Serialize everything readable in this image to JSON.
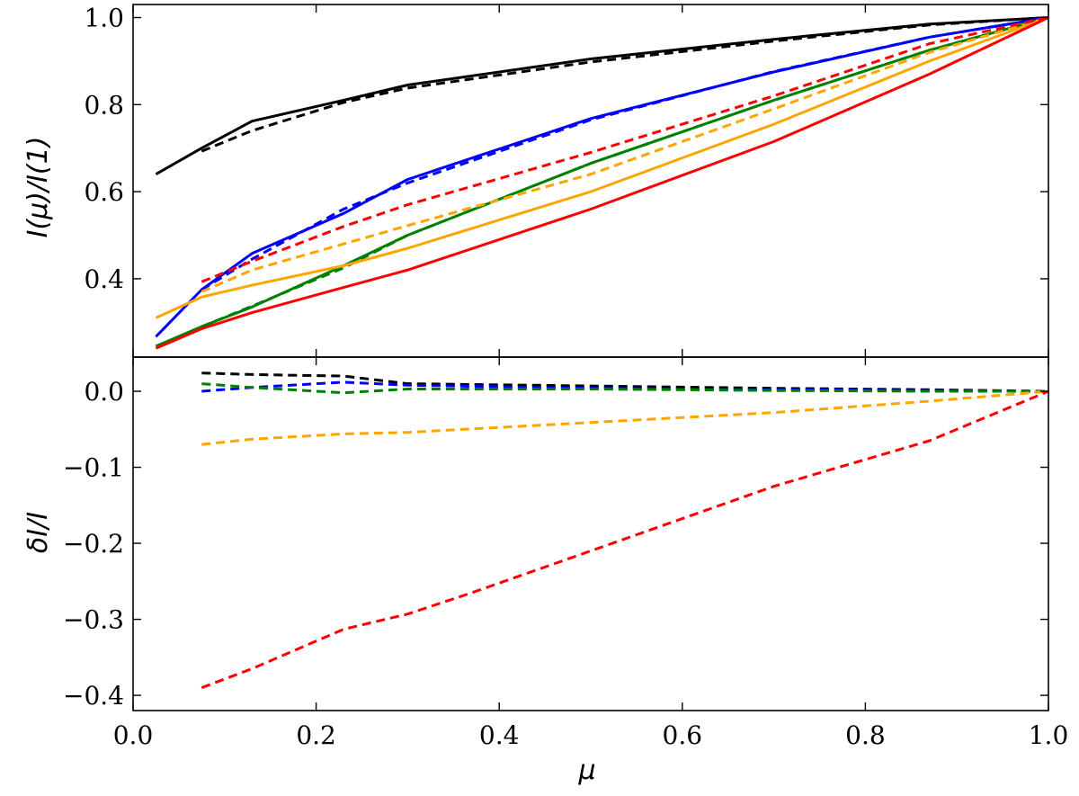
{
  "chart_data": [
    {
      "type": "line",
      "panel": "top",
      "ylabel": "I(μ)/I(1)",
      "xlim": [
        0.0,
        1.0
      ],
      "ylim": [
        0.22,
        1.03
      ],
      "yticks": [
        "0.4",
        "0.6",
        "0.8",
        "1.0"
      ],
      "ytick_values": [
        0.4,
        0.6,
        0.8,
        1.0
      ],
      "series": [
        {
          "color": "#000000",
          "style": "solid",
          "x": [
            0.025,
            0.075,
            0.13,
            0.23,
            0.3,
            0.5,
            0.7,
            0.87,
            1.0
          ],
          "y": [
            0.64,
            0.7,
            0.762,
            0.81,
            0.845,
            0.905,
            0.95,
            0.985,
            1.0
          ]
        },
        {
          "color": "#000000",
          "style": "dashed",
          "x": [
            0.075,
            0.13,
            0.23,
            0.3,
            0.5,
            0.7,
            0.87,
            1.0
          ],
          "y": [
            0.693,
            0.74,
            0.805,
            0.838,
            0.898,
            0.946,
            0.983,
            1.0
          ]
        },
        {
          "color": "#0000ff",
          "style": "solid",
          "x": [
            0.025,
            0.075,
            0.13,
            0.23,
            0.3,
            0.5,
            0.7,
            0.87,
            1.0
          ],
          "y": [
            0.267,
            0.375,
            0.458,
            0.55,
            0.628,
            0.768,
            0.875,
            0.955,
            1.0
          ]
        },
        {
          "color": "#0000ff",
          "style": "dashed",
          "x": [
            0.075,
            0.13,
            0.23,
            0.3,
            0.5,
            0.7,
            0.87,
            1.0
          ],
          "y": [
            0.375,
            0.445,
            0.56,
            0.62,
            0.765,
            0.876,
            0.955,
            1.0
          ]
        },
        {
          "color": "#008000",
          "style": "solid",
          "x": [
            0.025,
            0.075,
            0.13,
            0.23,
            0.3,
            0.5,
            0.7,
            0.87,
            1.0
          ],
          "y": [
            0.245,
            0.29,
            0.335,
            0.43,
            0.5,
            0.665,
            0.81,
            0.925,
            1.0
          ]
        },
        {
          "color": "#008000",
          "style": "dashed",
          "x": [
            0.075,
            0.13,
            0.23,
            0.3,
            0.5,
            0.7,
            0.87,
            1.0
          ],
          "y": [
            0.29,
            0.337,
            0.425,
            0.5,
            0.665,
            0.81,
            0.925,
            1.0
          ]
        },
        {
          "color": "#ffa500",
          "style": "solid",
          "x": [
            0.025,
            0.075,
            0.13,
            0.23,
            0.3,
            0.5,
            0.7,
            0.87,
            1.0
          ],
          "y": [
            0.31,
            0.358,
            0.385,
            0.43,
            0.47,
            0.6,
            0.755,
            0.9,
            1.0
          ]
        },
        {
          "color": "#ffa500",
          "style": "dashed",
          "x": [
            0.075,
            0.13,
            0.23,
            0.3,
            0.5,
            0.7,
            0.87,
            1.0
          ],
          "y": [
            0.37,
            0.42,
            0.48,
            0.522,
            0.64,
            0.79,
            0.92,
            1.0
          ]
        },
        {
          "color": "#ff0000",
          "style": "solid",
          "x": [
            0.025,
            0.075,
            0.13,
            0.23,
            0.3,
            0.5,
            0.7,
            0.87,
            1.0
          ],
          "y": [
            0.24,
            0.285,
            0.322,
            0.38,
            0.42,
            0.56,
            0.715,
            0.87,
            1.0
          ]
        },
        {
          "color": "#ff0000",
          "style": "dashed",
          "x": [
            0.075,
            0.13,
            0.23,
            0.3,
            0.5,
            0.7,
            0.87,
            1.0
          ],
          "y": [
            0.393,
            0.44,
            0.52,
            0.57,
            0.69,
            0.82,
            0.94,
            1.0
          ]
        }
      ]
    },
    {
      "type": "line",
      "panel": "bottom",
      "xlabel": "μ",
      "ylabel": "δI/I",
      "xlim": [
        0.0,
        1.0
      ],
      "ylim": [
        -0.42,
        0.045
      ],
      "xticks": [
        "0.0",
        "0.2",
        "0.4",
        "0.6",
        "0.8",
        "1.0"
      ],
      "xtick_values": [
        0.0,
        0.2,
        0.4,
        0.6,
        0.8,
        1.0
      ],
      "yticks": [
        "−0.4",
        "−0.3",
        "−0.2",
        "−0.1",
        "0.0"
      ],
      "ytick_values": [
        -0.4,
        -0.3,
        -0.2,
        -0.1,
        0.0
      ],
      "series": [
        {
          "color": "#000000",
          "style": "dashed",
          "x": [
            0.075,
            0.13,
            0.23,
            0.3,
            0.5,
            0.7,
            0.87,
            1.0
          ],
          "y": [
            0.024,
            0.022,
            0.02,
            0.01,
            0.007,
            0.004,
            0.002,
            0.0
          ]
        },
        {
          "color": "#0000ff",
          "style": "dashed",
          "x": [
            0.075,
            0.13,
            0.23,
            0.3,
            0.5,
            0.7,
            0.87,
            1.0
          ],
          "y": [
            0.0,
            0.005,
            0.012,
            0.008,
            0.004,
            0.002,
            0.001,
            0.0
          ]
        },
        {
          "color": "#008000",
          "style": "dashed",
          "x": [
            0.075,
            0.13,
            0.23,
            0.3,
            0.5,
            0.7,
            0.87,
            1.0
          ],
          "y": [
            0.01,
            0.005,
            -0.002,
            0.003,
            0.003,
            0.001,
            0.0,
            0.0
          ]
        },
        {
          "color": "#ffa500",
          "style": "dashed",
          "x": [
            0.075,
            0.13,
            0.23,
            0.3,
            0.5,
            0.7,
            0.87,
            1.0
          ],
          "y": [
            -0.07,
            -0.063,
            -0.056,
            -0.054,
            -0.041,
            -0.028,
            -0.013,
            0.0
          ]
        },
        {
          "color": "#ff0000",
          "style": "dashed",
          "x": [
            0.075,
            0.13,
            0.23,
            0.3,
            0.37,
            0.5,
            0.7,
            0.87,
            1.0
          ],
          "y": [
            -0.39,
            -0.365,
            -0.313,
            -0.293,
            -0.265,
            -0.21,
            -0.125,
            -0.065,
            0.0
          ]
        }
      ]
    }
  ]
}
